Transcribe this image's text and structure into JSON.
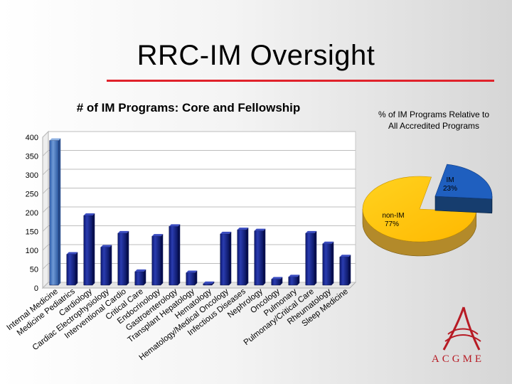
{
  "slide": {
    "title": "RRC-IM Oversight"
  },
  "colors": {
    "accent_rule": "#e0222b",
    "bar_fill": "#1a2a8c",
    "bar_highlight": "#4a78c4",
    "pie_im": "#1f5fbf",
    "pie_non_im": "#ffc000",
    "logo": "#b71b24"
  },
  "logo": {
    "text": "ACGME",
    "icon": "acgme-logo-icon"
  },
  "chart_data": [
    {
      "type": "bar",
      "title": "# of IM Programs: Core and Fellowship",
      "xlabel": "",
      "ylabel": "",
      "ylim": [
        0,
        400
      ],
      "yticks": [
        0,
        50,
        100,
        150,
        200,
        250,
        300,
        350,
        400
      ],
      "grid": true,
      "categories": [
        "Internal Medicine",
        "Medicine Pediatrics",
        "Cardiology",
        "Cardiac Electrophysiology",
        "Interventional Cardio",
        "Critical Care",
        "Endocrinology",
        "Gastroenterology",
        "Transplant Hepatology",
        "Hematology",
        "Hematology/Medical Oncology",
        "Infectious Diseases",
        "Nephrology",
        "Oncology",
        "Pulmonary",
        "Pulmonary/Critical Care",
        "Rheumatology",
        "Sleep Medicine"
      ],
      "values": [
        384,
        82,
        185,
        101,
        138,
        36,
        130,
        156,
        33,
        4,
        136,
        147,
        144,
        16,
        22,
        138,
        110,
        75
      ]
    },
    {
      "type": "pie",
      "title": "% of IM Programs Relative to All Accredited Programs",
      "slices": [
        {
          "label": "IM",
          "value": 23,
          "display": "23%"
        },
        {
          "label": "non-IM",
          "value": 77,
          "display": "77%"
        }
      ]
    }
  ]
}
